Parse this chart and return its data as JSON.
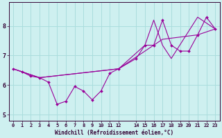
{
  "xlabel": "Windchill (Refroidissement éolien,°C)",
  "bg_color": "#cef0f0",
  "grid_color": "#aadddd",
  "line_color": "#990099",
  "xlim": [
    -0.5,
    23.5
  ],
  "ylim": [
    4.8,
    8.8
  ],
  "xticks": [
    0,
    1,
    2,
    3,
    4,
    5,
    6,
    7,
    8,
    9,
    10,
    11,
    12,
    14,
    15,
    16,
    17,
    18,
    19,
    20,
    21,
    22,
    23
  ],
  "yticks": [
    5,
    6,
    7,
    8
  ],
  "line1_x": [
    0,
    1,
    2,
    3,
    4,
    5,
    6,
    7,
    8,
    9,
    10,
    11,
    12,
    14,
    15,
    16,
    17,
    18,
    19,
    20,
    21,
    22,
    23
  ],
  "line1_y": [
    6.55,
    6.45,
    6.3,
    6.25,
    6.1,
    5.35,
    5.45,
    5.95,
    5.8,
    5.5,
    5.8,
    6.4,
    6.55,
    6.9,
    7.35,
    7.35,
    8.2,
    7.35,
    7.15,
    7.15,
    7.7,
    8.3,
    7.9
  ],
  "line2_x": [
    0,
    3,
    12,
    17,
    21,
    23
  ],
  "line2_y": [
    6.55,
    6.25,
    6.55,
    7.55,
    7.7,
    7.9
  ],
  "line3_x": [
    0,
    3,
    12,
    15,
    16,
    17,
    18,
    21,
    23
  ],
  "line3_y": [
    6.55,
    6.25,
    6.55,
    7.35,
    8.2,
    7.35,
    6.9,
    8.3,
    7.9
  ],
  "tick_fontsize": 5.0,
  "xlabel_fontsize": 5.5
}
